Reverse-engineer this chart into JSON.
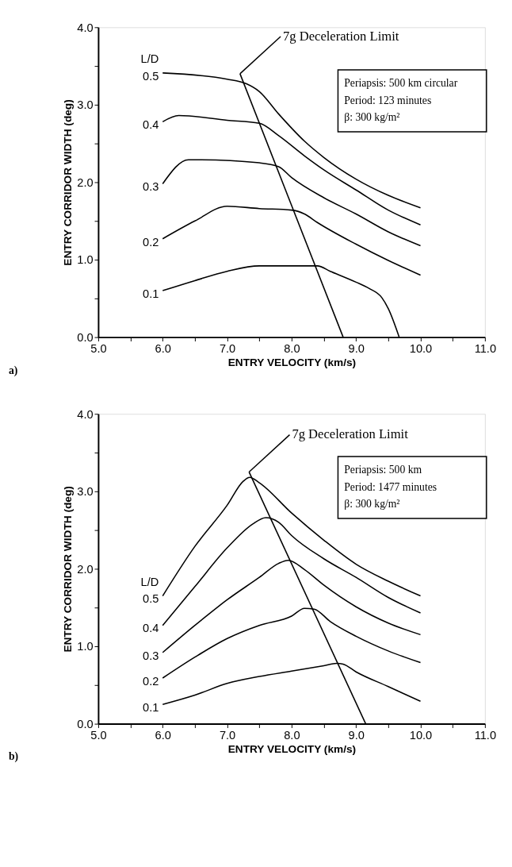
{
  "chart_data": [
    {
      "type": "line",
      "title": "a)",
      "xlabel": "ENTRY VELOCITY (km/s)",
      "ylabel": "ENTRY CORRIDOR WIDTH (deg)",
      "legend_title": "L/D",
      "xlim": [
        5,
        11
      ],
      "ylim": [
        0,
        4
      ],
      "xticks": [
        {
          "value": 5,
          "label": "5.0"
        },
        {
          "value": 5.5,
          "label": null
        },
        {
          "value": 6,
          "label": "6.0"
        },
        {
          "value": 6.5,
          "label": null
        },
        {
          "value": 7,
          "label": "7.0"
        },
        {
          "value": 7.5,
          "label": null
        },
        {
          "value": 8,
          "label": "8.0"
        },
        {
          "value": 8.5,
          "label": null
        },
        {
          "value": 9,
          "label": "9.0"
        },
        {
          "value": 9.5,
          "label": null
        },
        {
          "value": 10,
          "label": "10.0"
        },
        {
          "value": 10.5,
          "label": null
        },
        {
          "value": 11,
          "label": "11.0"
        }
      ],
      "yticks": [
        {
          "value": 0,
          "label": "0.0"
        },
        {
          "value": 0.5,
          "label": null
        },
        {
          "value": 1,
          "label": "1.0"
        },
        {
          "value": 1.5,
          "label": null
        },
        {
          "value": 2,
          "label": "2.0"
        },
        {
          "value": 2.5,
          "label": null
        },
        {
          "value": 3,
          "label": "3.0"
        },
        {
          "value": 3.5,
          "label": null
        },
        {
          "value": 4,
          "label": "4.0"
        }
      ],
      "series": [
        {
          "name": "0.5",
          "color": "#000000",
          "x": [
            6.0,
            7.0,
            7.3,
            7.5,
            7.8,
            8.2,
            8.5,
            9.0,
            9.5,
            10.0
          ],
          "values": [
            3.41,
            3.33,
            3.27,
            3.17,
            2.88,
            2.53,
            2.32,
            2.04,
            1.83,
            1.67
          ]
        },
        {
          "name": "0.4",
          "color": "#000000",
          "x": [
            6.0,
            6.25,
            7.0,
            7.5,
            7.8,
            8.2,
            8.5,
            9.0,
            9.5,
            10.0
          ],
          "values": [
            2.78,
            2.86,
            2.8,
            2.76,
            2.6,
            2.34,
            2.16,
            1.9,
            1.64,
            1.45
          ]
        },
        {
          "name": "0.3",
          "color": "#000000",
          "x": [
            6.0,
            6.4,
            6.6,
            7.5,
            7.8,
            8.0,
            8.5,
            9.0,
            9.5,
            10.0
          ],
          "values": [
            1.98,
            2.29,
            2.29,
            2.25,
            2.2,
            2.06,
            1.8,
            1.59,
            1.36,
            1.18
          ]
        },
        {
          "name": "0.2",
          "color": "#000000",
          "x": [
            6.0,
            6.5,
            7.0,
            7.5,
            8.0,
            8.2,
            8.4,
            9.0,
            9.5,
            10.0
          ],
          "values": [
            1.27,
            1.5,
            1.69,
            1.66,
            1.64,
            1.59,
            1.48,
            1.2,
            0.99,
            0.8
          ]
        },
        {
          "name": "0.1",
          "color": "#000000",
          "x": [
            6.0,
            6.5,
            7.0,
            7.5,
            8.0,
            8.4,
            8.6,
            9.0,
            9.2,
            9.4,
            9.5,
            9.67
          ],
          "values": [
            0.6,
            0.73,
            0.85,
            0.92,
            0.92,
            0.92,
            0.85,
            0.71,
            0.63,
            0.51,
            0.37,
            0.0
          ]
        },
        {
          "type": "line",
          "color": "#000000",
          "x": [
            7.2,
            8.8
          ],
          "values": [
            3.4,
            0.0
          ]
        }
      ],
      "annotations": [
        {
          "text": "7g Deceleration Limit",
          "x": 7.2,
          "y": 3.4
        },
        "Periapsis: 500 km circular",
        "Period: 123 minutes",
        "β: 300 kg/m²"
      ]
    },
    {
      "type": "line",
      "title": "b)",
      "xlabel": "ENTRY VELOCITY (km/s)",
      "ylabel": "ENTRY CORRIDOR WIDTH (deg)",
      "legend_title": "L/D",
      "xlim": [
        5,
        11
      ],
      "ylim": [
        0,
        4
      ],
      "xticks": [
        {
          "value": 5,
          "label": "5.0"
        },
        {
          "value": 5.5,
          "label": null
        },
        {
          "value": 6,
          "label": "6.0"
        },
        {
          "value": 6.5,
          "label": null
        },
        {
          "value": 7,
          "label": "7.0"
        },
        {
          "value": 7.5,
          "label": null
        },
        {
          "value": 8,
          "label": "8.0"
        },
        {
          "value": 8.5,
          "label": null
        },
        {
          "value": 9,
          "label": "9.0"
        },
        {
          "value": 9.5,
          "label": null
        },
        {
          "value": 10,
          "label": "10.0"
        },
        {
          "value": 10.5,
          "label": null
        },
        {
          "value": 11,
          "label": "11.0"
        }
      ],
      "yticks": [
        {
          "value": 0,
          "label": "0.0"
        },
        {
          "value": 0.5,
          "label": null
        },
        {
          "value": 1,
          "label": "1.0"
        },
        {
          "value": 1.5,
          "label": null
        },
        {
          "value": 2,
          "label": "2.0"
        },
        {
          "value": 2.5,
          "label": null
        },
        {
          "value": 3,
          "label": "3.0"
        },
        {
          "value": 3.5,
          "label": null
        },
        {
          "value": 4,
          "label": "4.0"
        }
      ],
      "series": [
        {
          "name": "0.5",
          "color": "#000000",
          "x": [
            6.0,
            6.5,
            7.0,
            7.25,
            7.35,
            7.5,
            8.0,
            8.5,
            9.0,
            9.5,
            10.0
          ],
          "values": [
            1.65,
            2.29,
            2.82,
            3.13,
            3.18,
            3.11,
            2.72,
            2.37,
            2.06,
            1.84,
            1.65
          ]
        },
        {
          "name": "0.4",
          "color": "#000000",
          "x": [
            6.0,
            6.5,
            7.0,
            7.4,
            7.6,
            7.8,
            8.0,
            8.5,
            9.0,
            9.5,
            10.0
          ],
          "values": [
            1.27,
            1.77,
            2.27,
            2.58,
            2.66,
            2.6,
            2.43,
            2.13,
            1.89,
            1.63,
            1.43
          ]
        },
        {
          "name": "0.3",
          "color": "#000000",
          "x": [
            6.0,
            6.5,
            7.0,
            7.5,
            7.8,
            7.95,
            8.2,
            8.5,
            9.0,
            9.5,
            10.0
          ],
          "values": [
            0.92,
            1.27,
            1.6,
            1.89,
            2.07,
            2.11,
            1.99,
            1.79,
            1.51,
            1.3,
            1.15
          ]
        },
        {
          "name": "0.2",
          "color": "#000000",
          "x": [
            6.0,
            6.5,
            7.0,
            7.5,
            8.0,
            8.2,
            8.35,
            8.6,
            9.0,
            9.5,
            10.0
          ],
          "values": [
            0.59,
            0.86,
            1.1,
            1.27,
            1.39,
            1.49,
            1.48,
            1.32,
            1.13,
            0.94,
            0.79
          ]
        },
        {
          "name": "0.1",
          "color": "#000000",
          "x": [
            6.0,
            6.5,
            7.0,
            7.5,
            8.0,
            8.5,
            8.7,
            8.8,
            9.0,
            9.5,
            10.0
          ],
          "values": [
            0.25,
            0.37,
            0.52,
            0.61,
            0.68,
            0.75,
            0.78,
            0.77,
            0.67,
            0.48,
            0.29
          ]
        },
        {
          "type": "line",
          "color": "#000000",
          "x": [
            7.34,
            9.15
          ],
          "values": [
            3.25,
            0.0
          ]
        }
      ],
      "annotations": [
        {
          "text": "7g Deceleration Limit",
          "x": 7.34,
          "y": 3.25
        },
        "Periapsis: 500 km",
        "Period: 1477 minutes",
        "β: 300 kg/m²"
      ]
    }
  ]
}
